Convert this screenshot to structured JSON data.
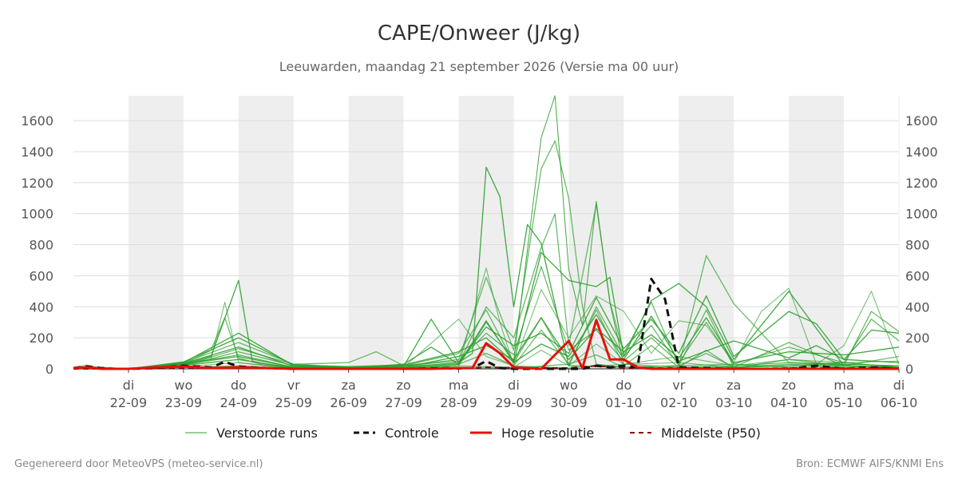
{
  "colors": {
    "weekend_band": "#eeeeee",
    "grid": "#dddddd",
    "perturbed": "#2ca02c",
    "control": "#111111",
    "high_res": "#e3120b",
    "median": "#8b0000"
  },
  "footer": {
    "left": "Gegenereerd door MeteoVPS (meteo-service.nl)",
    "right": "Bron: ECMWF AIFS/KNMI Ens"
  },
  "chart_data": {
    "type": "line",
    "title": "CAPE/Onweer (J/kg)",
    "subtitle": "Leeuwarden, maandag 21 september 2026 (Versie ma 00 uur)",
    "x_unit": "days after 2026-09-21 00:00",
    "xlim": [
      0,
      15
    ],
    "ylim": [
      0,
      1760
    ],
    "y_ticks": [
      0,
      200,
      400,
      600,
      800,
      1000,
      1200,
      1400,
      1600
    ],
    "x_ticks": [
      {
        "x": 1,
        "day": "di",
        "date": "22-09"
      },
      {
        "x": 2,
        "day": "wo",
        "date": "23-09"
      },
      {
        "x": 3,
        "day": "do",
        "date": "24-09"
      },
      {
        "x": 4,
        "day": "vr",
        "date": "25-09"
      },
      {
        "x": 5,
        "day": "za",
        "date": "26-09"
      },
      {
        "x": 6,
        "day": "zo",
        "date": "27-09"
      },
      {
        "x": 7,
        "day": "ma",
        "date": "28-09"
      },
      {
        "x": 8,
        "day": "di",
        "date": "29-09"
      },
      {
        "x": 9,
        "day": "wo",
        "date": "30-09"
      },
      {
        "x": 10,
        "day": "do",
        "date": "01-10"
      },
      {
        "x": 11,
        "day": "vr",
        "date": "02-10"
      },
      {
        "x": 12,
        "day": "za",
        "date": "03-10"
      },
      {
        "x": 13,
        "day": "zo",
        "date": "04-10"
      },
      {
        "x": 14,
        "day": "ma",
        "date": "05-10"
      },
      {
        "x": 15,
        "day": "di",
        "date": "06-10"
      }
    ],
    "shaded_days": [
      [
        1,
        2
      ],
      [
        3,
        4
      ],
      [
        5,
        6
      ],
      [
        7,
        8
      ],
      [
        9,
        10
      ],
      [
        11,
        12
      ],
      [
        13,
        14
      ]
    ],
    "grid": "horizontal",
    "legend_position": "bottom",
    "legend": [
      {
        "key": "perturbed",
        "label": "Verstoorde runs"
      },
      {
        "key": "control",
        "label": "Controle"
      },
      {
        "key": "high_res",
        "label": "Hoge resolutie"
      },
      {
        "key": "median",
        "label": "Middelste (P50)"
      }
    ],
    "control": {
      "x": [
        0,
        0.25,
        0.5,
        0.75,
        1,
        1.5,
        2,
        2.5,
        2.75,
        3,
        3.5,
        4,
        5,
        6,
        7,
        7.25,
        7.5,
        7.75,
        8,
        8.5,
        9,
        9.25,
        9.5,
        9.75,
        10,
        10.25,
        10.5,
        10.75,
        11,
        11.5,
        12,
        13,
        13.5,
        14,
        14.5,
        15
      ],
      "y": [
        5,
        15,
        5,
        0,
        0,
        5,
        20,
        10,
        45,
        15,
        5,
        0,
        0,
        0,
        5,
        5,
        50,
        5,
        0,
        0,
        0,
        0,
        20,
        10,
        20,
        10,
        580,
        450,
        10,
        5,
        0,
        0,
        20,
        0,
        10,
        0
      ]
    },
    "high_res": {
      "x": [
        0,
        0.25,
        0.5,
        1,
        1.5,
        2,
        2.5,
        3,
        3.5,
        4,
        5,
        6,
        6.5,
        7,
        7.25,
        7.5,
        7.75,
        8,
        8.5,
        9,
        9.25,
        9.5,
        9.75,
        10,
        10.25,
        10.5,
        11,
        12,
        13,
        14,
        15
      ],
      "y": [
        5,
        10,
        0,
        0,
        10,
        15,
        5,
        10,
        5,
        0,
        0,
        0,
        0,
        5,
        5,
        165,
        100,
        10,
        0,
        180,
        5,
        315,
        60,
        60,
        10,
        0,
        0,
        0,
        0,
        0,
        0
      ]
    },
    "median": {
      "x": [
        0,
        1,
        2,
        3,
        4,
        5,
        6,
        7,
        7.5,
        8,
        9,
        9.5,
        10,
        11,
        12,
        13,
        14,
        15
      ],
      "y": [
        0,
        0,
        5,
        10,
        0,
        0,
        0,
        0,
        10,
        5,
        5,
        20,
        5,
        5,
        0,
        5,
        5,
        5
      ]
    },
    "perturbed_series": [
      {
        "x": [
          0,
          0.25,
          0.5,
          1,
          1.5,
          2,
          2.5,
          2.75,
          3,
          3.25,
          3.5,
          4,
          5,
          6,
          7,
          7.5,
          7.75,
          8,
          9,
          10,
          11,
          12,
          13,
          14,
          15
        ],
        "y": [
          10,
          25,
          5,
          0,
          20,
          40,
          60,
          430,
          40,
          30,
          20,
          5,
          0,
          5,
          20,
          650,
          300,
          20,
          5,
          30,
          40,
          10,
          20,
          30,
          20
        ]
      },
      {
        "x": [
          0,
          0.5,
          1,
          1.5,
          2,
          2.5,
          3,
          3.25,
          3.5,
          4,
          5,
          6,
          7,
          7.25,
          7.5,
          7.75,
          8,
          8.25,
          8.5,
          9,
          10,
          11,
          12,
          13,
          14,
          15
        ],
        "y": [
          5,
          10,
          0,
          10,
          30,
          80,
          570,
          50,
          30,
          10,
          5,
          10,
          40,
          100,
          1300,
          1110,
          400,
          930,
          810,
          20,
          10,
          5,
          10,
          20,
          40,
          10
        ]
      },
      {
        "x": [
          0,
          1,
          2,
          2.5,
          2.75,
          3,
          3.5,
          4,
          5,
          6,
          7,
          7.5,
          8,
          8.5,
          8.75,
          9,
          9.25,
          9.5,
          10,
          11,
          12,
          13,
          14,
          15
        ],
        "y": [
          5,
          0,
          30,
          120,
          330,
          70,
          20,
          10,
          5,
          20,
          60,
          590,
          120,
          1290,
          1470,
          1100,
          400,
          30,
          10,
          20,
          30,
          10,
          20,
          5
        ]
      },
      {
        "x": [
          0,
          1,
          2,
          3,
          4,
          5,
          6,
          7,
          7.5,
          8,
          8.5,
          8.75,
          9,
          9.25,
          9.5,
          9.75,
          10,
          11,
          12,
          13,
          14,
          15
        ],
        "y": [
          0,
          0,
          20,
          110,
          20,
          5,
          10,
          20,
          300,
          50,
          1490,
          1760,
          640,
          280,
          1080,
          420,
          30,
          10,
          20,
          40,
          30,
          20
        ]
      },
      {
        "x": [
          0,
          1,
          2,
          3,
          4,
          5,
          6,
          7,
          7.5,
          8,
          8.5,
          8.75,
          9,
          9.5,
          9.75,
          10,
          10.5,
          11,
          11.5,
          12,
          13,
          14,
          15
        ],
        "y": [
          5,
          0,
          40,
          170,
          30,
          10,
          20,
          30,
          400,
          200,
          780,
          1000,
          150,
          1060,
          430,
          100,
          430,
          20,
          730,
          420,
          40,
          20,
          10
        ]
      },
      {
        "x": [
          0,
          1,
          2,
          3,
          4,
          5,
          6,
          6.5,
          7,
          7.5,
          8,
          8.5,
          9,
          9.5,
          9.75,
          10,
          10.5,
          11,
          11.5,
          12,
          13,
          14,
          15
        ],
        "y": [
          0,
          0,
          30,
          80,
          10,
          5,
          30,
          140,
          30,
          310,
          40,
          750,
          570,
          530,
          590,
          80,
          440,
          550,
          400,
          60,
          500,
          20,
          10
        ]
      },
      {
        "x": [
          0,
          1,
          2,
          3,
          4,
          5,
          6,
          7,
          7.5,
          8,
          8.5,
          9,
          9.5,
          10,
          10.5,
          11,
          11.5,
          12,
          12.5,
          13,
          13.5,
          14,
          14.5,
          15
        ],
        "y": [
          5,
          0,
          20,
          60,
          5,
          5,
          10,
          320,
          80,
          20,
          510,
          200,
          470,
          370,
          100,
          310,
          280,
          40,
          370,
          520,
          30,
          150,
          500,
          30
        ]
      },
      {
        "x": [
          0,
          1,
          2,
          3,
          4,
          5,
          6,
          6.5,
          7,
          7.5,
          8,
          8.5,
          9,
          9.5,
          10,
          10.5,
          11,
          11.5,
          12,
          13,
          13.5,
          14,
          14.5,
          15
        ],
        "y": [
          10,
          0,
          40,
          230,
          20,
          10,
          15,
          320,
          40,
          270,
          150,
          230,
          100,
          460,
          130,
          320,
          100,
          470,
          80,
          370,
          290,
          60,
          250,
          230
        ]
      },
      {
        "x": [
          0,
          1,
          2,
          3,
          4,
          5,
          5.5,
          6,
          7,
          7.5,
          8,
          8.5,
          9,
          9.5,
          10,
          10.5,
          11,
          11.5,
          12,
          13,
          14,
          14.5,
          15
        ],
        "y": [
          0,
          0,
          20,
          130,
          30,
          40,
          110,
          20,
          100,
          380,
          40,
          330,
          20,
          400,
          80,
          280,
          20,
          380,
          10,
          170,
          20,
          370,
          240
        ]
      },
      {
        "x": [
          0,
          1,
          2,
          3,
          4,
          5,
          6,
          7,
          7.5,
          8,
          8.5,
          9,
          9.5,
          10,
          10.5,
          11,
          11.5,
          12,
          13,
          14,
          14.5,
          15
        ],
        "y": [
          5,
          0,
          30,
          90,
          10,
          5,
          20,
          50,
          230,
          90,
          660,
          120,
          250,
          50,
          200,
          40,
          300,
          30,
          140,
          40,
          320,
          180
        ]
      },
      {
        "x": [
          0,
          1,
          2,
          3,
          4,
          5,
          6,
          7,
          7.5,
          8,
          8.5,
          9,
          9.5,
          10,
          10.5,
          11,
          11.5,
          12,
          13,
          14,
          15
        ],
        "y": [
          0,
          0,
          25,
          60,
          5,
          0,
          5,
          30,
          100,
          20,
          250,
          30,
          380,
          20,
          150,
          10,
          120,
          5,
          60,
          20,
          80
        ]
      },
      {
        "x": [
          0,
          1,
          2,
          3,
          4,
          5,
          6,
          7,
          7.5,
          8,
          8.5,
          9,
          9.5,
          10,
          10.5,
          11,
          11.5,
          12,
          13,
          14,
          15
        ],
        "y": [
          5,
          0,
          35,
          140,
          15,
          10,
          10,
          80,
          150,
          60,
          330,
          60,
          260,
          110,
          220,
          70,
          330,
          40,
          110,
          90,
          140
        ]
      },
      {
        "x": [
          0,
          1,
          2,
          3,
          4,
          5,
          6,
          7,
          8,
          8.5,
          9,
          9.5,
          10,
          11,
          12,
          13,
          14,
          15
        ],
        "y": [
          0,
          0,
          15,
          40,
          5,
          0,
          0,
          20,
          10,
          120,
          20,
          160,
          30,
          80,
          20,
          60,
          40,
          50
        ]
      },
      {
        "x": [
          0,
          1,
          2,
          3,
          4,
          5,
          6,
          7,
          7.5,
          8,
          8.5,
          9,
          9.5,
          10,
          10.5,
          11,
          12,
          13,
          13.5,
          14,
          15
        ],
        "y": [
          10,
          0,
          45,
          200,
          25,
          15,
          25,
          110,
          200,
          40,
          160,
          80,
          350,
          60,
          340,
          50,
          180,
          70,
          150,
          60,
          40
        ]
      },
      {
        "x": [
          0,
          1,
          2,
          3,
          4,
          5,
          6,
          7,
          8,
          9,
          9.5,
          10,
          11,
          11.5,
          12,
          13,
          14,
          15
        ],
        "y": [
          0,
          0,
          10,
          20,
          0,
          0,
          0,
          10,
          5,
          30,
          90,
          10,
          20,
          100,
          10,
          30,
          10,
          20
        ]
      }
    ]
  }
}
